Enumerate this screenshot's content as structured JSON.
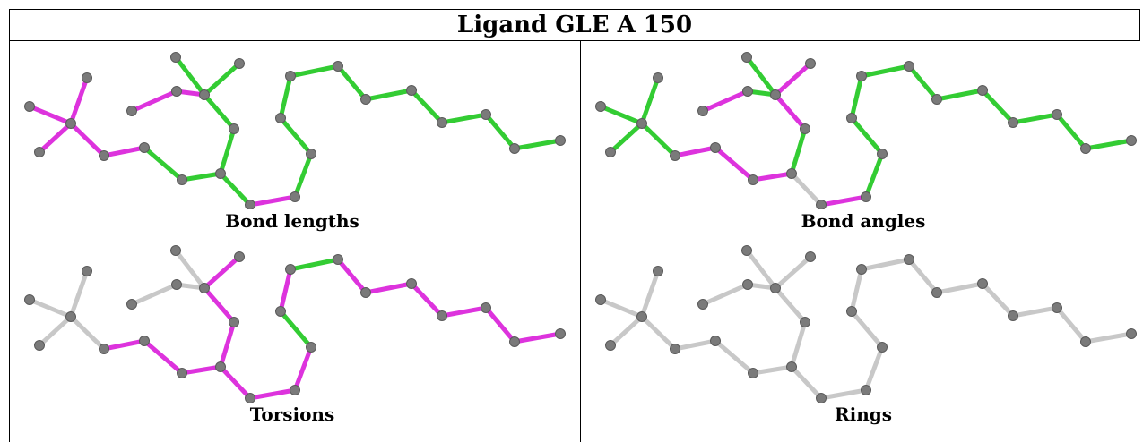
{
  "title": "Ligand GLE A 150",
  "colors": {
    "ok": "#33cc33",
    "outlier": "#dd33dd",
    "none": "#c8c8c8",
    "atom": "#7a7a7a"
  },
  "panels": [
    {
      "caption": "Bond lengths",
      "bonds": [
        "outlier",
        "outlier",
        "outlier",
        "outlier",
        "outlier",
        "ok",
        "ok",
        "outlier",
        "outlier",
        "ok",
        "ok",
        "ok",
        "ok",
        "ok",
        "outlier",
        "ok",
        "ok",
        "ok",
        "ok",
        "ok",
        "ok",
        "ok",
        "ok",
        "ok",
        "ok",
        "ok",
        "ok",
        "ok"
      ]
    },
    {
      "caption": "Bond angles",
      "bonds": [
        "ok",
        "ok",
        "ok",
        "ok",
        "outlier",
        "outlier",
        "outlier",
        "outlier",
        "ok",
        "ok",
        "outlier",
        "outlier",
        "ok",
        "none",
        "outlier",
        "ok",
        "ok",
        "ok",
        "ok",
        "ok",
        "ok",
        "ok",
        "ok",
        "ok",
        "ok",
        "ok",
        "ok",
        "ok"
      ]
    },
    {
      "caption": "Torsions",
      "bonds": [
        "none",
        "none",
        "none",
        "none",
        "outlier",
        "outlier",
        "outlier",
        "none",
        "none",
        "none",
        "outlier",
        "outlier",
        "outlier",
        "outlier",
        "outlier",
        "outlier",
        "ok",
        "outlier",
        "ok",
        "outlier",
        "outlier",
        "outlier",
        "outlier",
        "outlier",
        "outlier",
        "outlier",
        "outlier",
        "none"
      ]
    },
    {
      "caption": "Rings",
      "bonds": [
        "none",
        "none",
        "none",
        "none",
        "none",
        "none",
        "none",
        "none",
        "none",
        "none",
        "none",
        "none",
        "none",
        "none",
        "none",
        "none",
        "none",
        "none",
        "none",
        "none",
        "none",
        "none",
        "none",
        "none",
        "none",
        "none",
        "none",
        "none"
      ]
    }
  ]
}
